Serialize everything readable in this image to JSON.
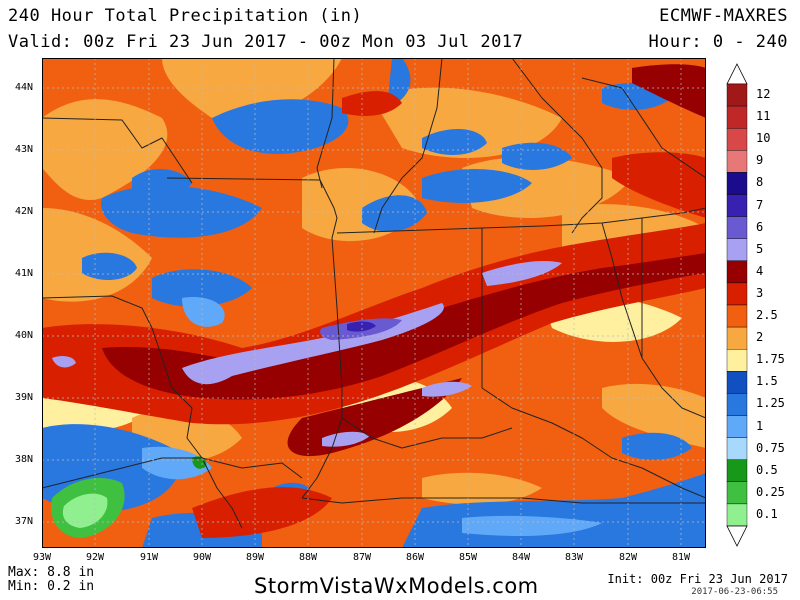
{
  "header": {
    "title": "240 Hour Total Precipitation (in)",
    "valid": "Valid: 00z Fri 23 Jun 2017 - 00z Mon 03 Jul 2017",
    "model": "ECMWF-MAXRES",
    "hour": "Hour: 0 - 240"
  },
  "map": {
    "lat_labels": [
      "44N",
      "43N",
      "42N",
      "41N",
      "40N",
      "39N",
      "38N",
      "37N"
    ],
    "lon_labels": [
      "93W",
      "92W",
      "91W",
      "90W",
      "89W",
      "88W",
      "87W",
      "86W",
      "85W",
      "84W",
      "83W",
      "82W",
      "81W"
    ],
    "extent": {
      "lon": [
        -93,
        -80.5
      ],
      "lat": [
        36.6,
        44.4
      ]
    },
    "grid": true
  },
  "legend": {
    "levels": [
      {
        "label": "12",
        "color": "#a01818"
      },
      {
        "label": "11",
        "color": "#c02828"
      },
      {
        "label": "10",
        "color": "#d84848"
      },
      {
        "label": "9",
        "color": "#e87878"
      },
      {
        "label": "8",
        "color": "#1a0c8c"
      },
      {
        "label": "7",
        "color": "#3820b0"
      },
      {
        "label": "6",
        "color": "#6a5ad2"
      },
      {
        "label": "5",
        "color": "#a8a0f0"
      },
      {
        "label": "4",
        "color": "#960000"
      },
      {
        "label": "3",
        "color": "#d82000"
      },
      {
        "label": "2.5",
        "color": "#f06010"
      },
      {
        "label": "2",
        "color": "#f8a840"
      },
      {
        "label": "1.75",
        "color": "#fff0a0"
      },
      {
        "label": "1.5",
        "color": "#1050c0"
      },
      {
        "label": "1.25",
        "color": "#2878e0"
      },
      {
        "label": "1",
        "color": "#60a8f8"
      },
      {
        "label": "0.75",
        "color": "#a8d8fc"
      },
      {
        "label": "0.5",
        "color": "#189818"
      },
      {
        "label": "0.25",
        "color": "#40c040"
      },
      {
        "label": "0.1",
        "color": "#90f090"
      }
    ]
  },
  "stats": {
    "max": "Max: 8.8 in",
    "min": "Min: 0.2 in"
  },
  "footer": {
    "brand": "StormVistaWxModels.com",
    "init": "Init: 00z Fri 23 Jun 2017",
    "stamp": "2017-06-23-06:55"
  }
}
